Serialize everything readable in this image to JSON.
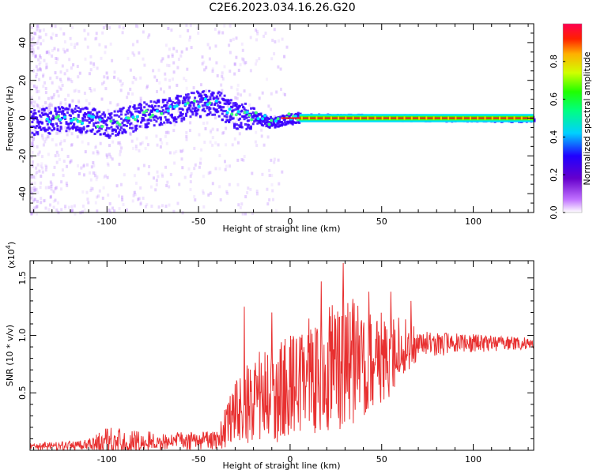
{
  "title": "C2E6.2023.034.16.26.G20",
  "chart_data": [
    {
      "type": "heatmap",
      "xlabel": "Height of straight line (km)",
      "ylabel": "Frequency (Hz)",
      "xlim": [
        -142,
        133
      ],
      "ylim": [
        -50,
        50
      ],
      "xticks": [
        -100,
        -50,
        0,
        50,
        100
      ],
      "yticks": [
        -40,
        -20,
        0,
        20,
        40
      ],
      "colorbar": {
        "label": "Normalized spectral amplitude",
        "range": [
          0,
          1
        ],
        "ticks": [
          "0.0",
          "0.2",
          "0.4",
          "0.6",
          "0.8"
        ]
      },
      "ridge": [
        {
          "x": -140,
          "y": -2
        },
        {
          "x": -120,
          "y": 1
        },
        {
          "x": -100,
          "y": -3
        },
        {
          "x": -80,
          "y": 2
        },
        {
          "x": -65,
          "y": 5
        },
        {
          "x": -50,
          "y": 8
        },
        {
          "x": -40,
          "y": 8
        },
        {
          "x": -30,
          "y": 2
        },
        {
          "x": -20,
          "y": 1
        },
        {
          "x": -10,
          "y": -2
        },
        {
          "x": 0,
          "y": 0
        },
        {
          "x": 10,
          "y": 1
        },
        {
          "x": 133,
          "y": 0
        }
      ]
    },
    {
      "type": "line",
      "xlabel": "Height of straight line (km)",
      "ylabel": "SNR (10 * v/v)",
      "scale_label": "(x10",
      "scale_exp": "4",
      "xlim": [
        -142,
        133
      ],
      "ylim": [
        0,
        1.65
      ],
      "xticks": [
        -100,
        -50,
        0,
        50,
        100
      ],
      "yticks": [
        "0.5",
        "1.0",
        "1.5"
      ],
      "series": [
        {
          "color": "#e83030",
          "envelope": [
            {
              "x": -142,
              "mean": 0.03,
              "amp": 0.03
            },
            {
              "x": -110,
              "mean": 0.05,
              "amp": 0.05
            },
            {
              "x": -100,
              "mean": 0.08,
              "amp": 0.12
            },
            {
              "x": -80,
              "mean": 0.08,
              "amp": 0.09
            },
            {
              "x": -60,
              "mean": 0.08,
              "amp": 0.08
            },
            {
              "x": -40,
              "mean": 0.09,
              "amp": 0.08
            },
            {
              "x": -30,
              "mean": 0.3,
              "amp": 0.3
            },
            {
              "x": -20,
              "mean": 0.45,
              "amp": 0.4
            },
            {
              "x": -10,
              "mean": 0.5,
              "amp": 0.45
            },
            {
              "x": 0,
              "mean": 0.55,
              "amp": 0.45
            },
            {
              "x": 10,
              "mean": 0.65,
              "amp": 0.5
            },
            {
              "x": 20,
              "mean": 0.7,
              "amp": 0.55
            },
            {
              "x": 30,
              "mean": 0.75,
              "amp": 0.6
            },
            {
              "x": 45,
              "mean": 0.8,
              "amp": 0.45
            },
            {
              "x": 60,
              "mean": 0.85,
              "amp": 0.35
            },
            {
              "x": 70,
              "mean": 0.92,
              "amp": 0.12
            },
            {
              "x": 100,
              "mean": 0.93,
              "amp": 0.08
            },
            {
              "x": 133,
              "mean": 0.93,
              "amp": 0.05
            }
          ],
          "peaks": [
            {
              "x": -25,
              "y": 1.25
            },
            {
              "x": -10,
              "y": 1.2
            },
            {
              "x": 17,
              "y": 1.47
            },
            {
              "x": 29,
              "y": 1.63
            },
            {
              "x": 43,
              "y": 1.38
            },
            {
              "x": 55,
              "y": 1.38
            },
            {
              "x": 66,
              "y": 1.3
            }
          ]
        }
      ]
    }
  ]
}
